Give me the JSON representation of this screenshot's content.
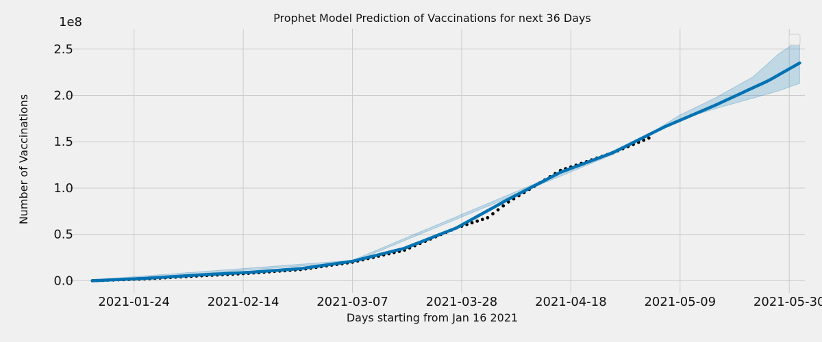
{
  "chart_data": {
    "type": "line",
    "title": "Prophet Model Prediction of Vaccinations for next 36 Days",
    "xlabel": "Days starting from Jan 16 2021",
    "ylabel": "Number of Vaccinations",
    "y_offset_label": "1e8",
    "xlim": [
      "2021-01-11",
      "2021-06-02"
    ],
    "ylim": [
      -0.13,
      2.72
    ],
    "x_ticks": [
      "2021-01-24",
      "2021-02-14",
      "2021-03-07",
      "2021-03-28",
      "2021-04-18",
      "2021-05-09",
      "2021-05-30"
    ],
    "y_ticks": [
      0.0,
      0.5,
      1.0,
      1.5,
      2.0,
      2.5
    ],
    "y_tick_labels": [
      "0.0",
      "0.5",
      "1.0",
      "1.5",
      "2.0",
      "2.5"
    ],
    "grid": true,
    "legend": "top-right",
    "colors": {
      "background": "#f0f0f0",
      "grid": "#cbcbcb",
      "forecast": "#0072B2",
      "interval": "#0072B2",
      "observed": "#000000"
    },
    "series": [
      {
        "kind": "observed",
        "x": [
          "2021-01-16",
          "2021-01-26",
          "2021-02-05",
          "2021-02-15",
          "2021-02-25",
          "2021-03-07",
          "2021-03-17",
          "2021-03-27",
          "2021-04-02",
          "2021-04-06",
          "2021-04-16",
          "2021-04-26",
          "2021-05-03"
        ],
        "y": [
          0.0,
          0.02,
          0.05,
          0.08,
          0.12,
          0.2,
          0.33,
          0.57,
          0.68,
          0.85,
          1.19,
          1.38,
          1.54
        ]
      },
      {
        "kind": "forecast",
        "x": [
          "2021-01-16",
          "2021-01-26",
          "2021-02-05",
          "2021-02-15",
          "2021-02-25",
          "2021-03-07",
          "2021-03-17",
          "2021-03-27",
          "2021-04-06",
          "2021-04-16",
          "2021-04-26",
          "2021-05-06",
          "2021-05-16",
          "2021-05-26",
          "2021-06-01"
        ],
        "y": [
          0.0,
          0.025,
          0.06,
          0.09,
          0.13,
          0.21,
          0.35,
          0.57,
          0.88,
          1.17,
          1.38,
          1.66,
          1.9,
          2.16,
          2.35
        ]
      },
      {
        "kind": "interval_upper",
        "x": [
          "2021-01-16",
          "2021-03-07",
          "2021-04-26",
          "2021-05-03",
          "2021-05-09",
          "2021-05-16",
          "2021-05-23",
          "2021-05-28",
          "2021-06-01"
        ],
        "y": [
          0.01,
          0.22,
          1.4,
          1.58,
          1.79,
          1.98,
          2.2,
          2.45,
          2.6
        ]
      },
      {
        "kind": "interval_lower",
        "x": [
          "2021-01-16",
          "2021-03-07",
          "2021-04-26",
          "2021-05-03",
          "2021-05-09",
          "2021-05-16",
          "2021-05-23",
          "2021-05-28",
          "2021-06-01"
        ],
        "y": [
          -0.01,
          0.2,
          1.36,
          1.56,
          1.74,
          1.86,
          1.97,
          2.05,
          2.13
        ]
      }
    ]
  }
}
